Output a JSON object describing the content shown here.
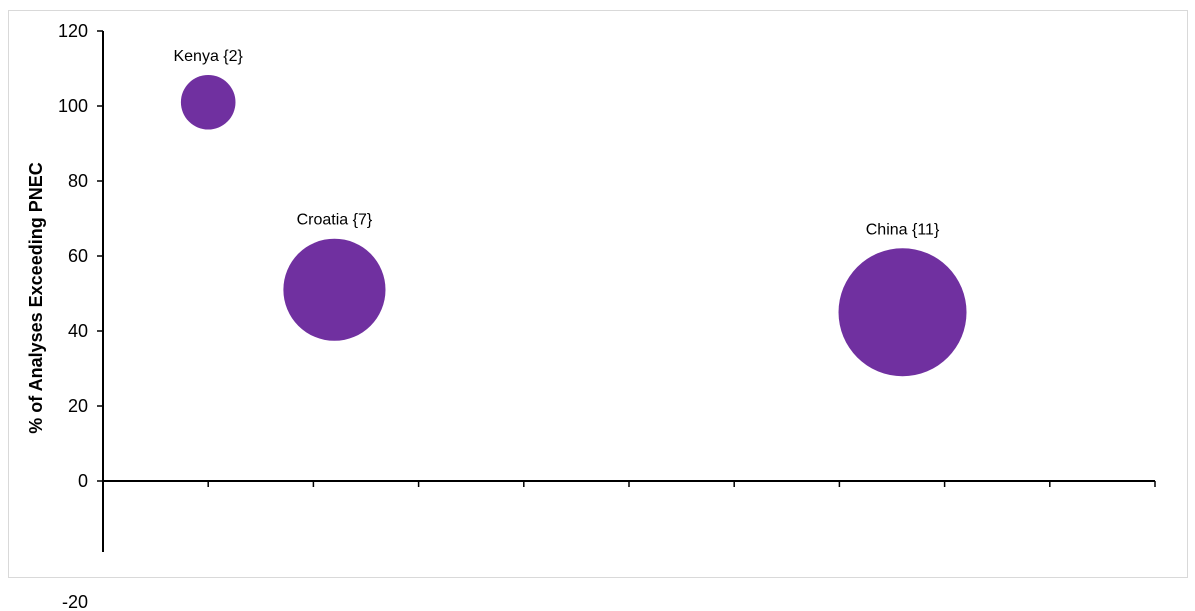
{
  "chart_data": {
    "type": "bubble",
    "title": "",
    "xlabel": "",
    "ylabel": "% of Analyses Exceeding PNEC",
    "ylim": [
      -20,
      120
    ],
    "yticks": [
      -20,
      0,
      20,
      40,
      60,
      80,
      100,
      120
    ],
    "xlim": [
      0,
      10
    ],
    "grid": false,
    "legend": "none",
    "bubble_color": "#7030a0",
    "points": [
      {
        "label": "Kenya {2}",
        "x": 1,
        "y": 101,
        "size": 2
      },
      {
        "label": "Croatia {7}",
        "x": 2.2,
        "y": 51,
        "size": 7
      },
      {
        "label": "China {11}",
        "x": 7.6,
        "y": 45,
        "size": 11
      }
    ]
  }
}
